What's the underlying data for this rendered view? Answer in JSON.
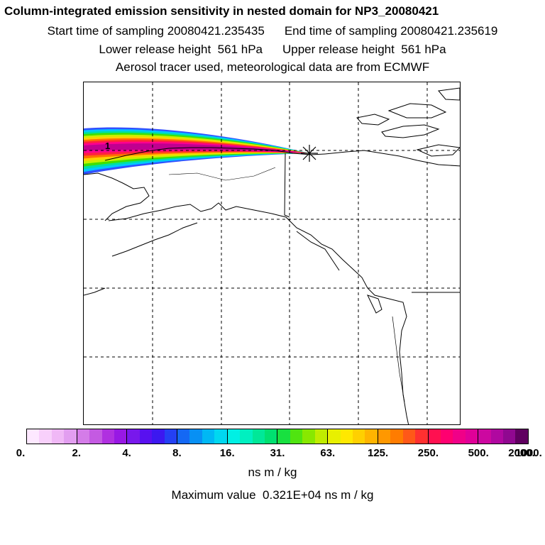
{
  "title": "Column-integrated emission sensitivity in nested domain for NP3_20080421",
  "sampling": {
    "start_label": "Start time of sampling 20080421.235435",
    "end_label": "End time of sampling 20080421.235619"
  },
  "release": {
    "lower_label": "Lower release height  561 hPa",
    "upper_label": "Upper release height  561 hPa"
  },
  "subtitle": "Aerosol tracer used, meteorological data are from ECMWF",
  "map": {
    "marker_label": "1",
    "region": "Alaska / Western Canada / Pacific Northwest",
    "plume_colors": [
      "#3050ff",
      "#00c8ff",
      "#00e0a0",
      "#40e000",
      "#c8f000",
      "#ffd000",
      "#ff7000",
      "#ff2040",
      "#ff0090",
      "#c00090"
    ]
  },
  "colorbar": {
    "segments": [
      "#fde8ff",
      "#f8d0fb",
      "#f0b8f6",
      "#e29ef0",
      "#d47ce8",
      "#c45ae2",
      "#b030e0",
      "#9818e4",
      "#7818ec",
      "#5810f0",
      "#3c18f0",
      "#2440f4",
      "#1468f4",
      "#0890f4",
      "#00b8f4",
      "#00d8f0",
      "#00f0e4",
      "#00f0c0",
      "#00e898",
      "#00e070",
      "#18e040",
      "#50e410",
      "#88e800",
      "#c0ec00",
      "#e8f000",
      "#ffe800",
      "#ffd000",
      "#ffb400",
      "#ff9800",
      "#ff7c00",
      "#ff5818",
      "#ff3030",
      "#ff1050",
      "#ff0070",
      "#f00088",
      "#e00098",
      "#cc08a0",
      "#b008a0",
      "#900890",
      "#600060"
    ],
    "major_every": 4,
    "tick_labels": [
      "0.",
      "2.",
      "4.",
      "8.",
      "16.",
      "31.",
      "63.",
      "125.",
      "250.",
      "500.",
      "1000.",
      "2000."
    ],
    "unit": "ns m / kg"
  },
  "max_value": {
    "label": "Maximum value",
    "value": "0.321E+04",
    "unit": "ns m / kg"
  }
}
